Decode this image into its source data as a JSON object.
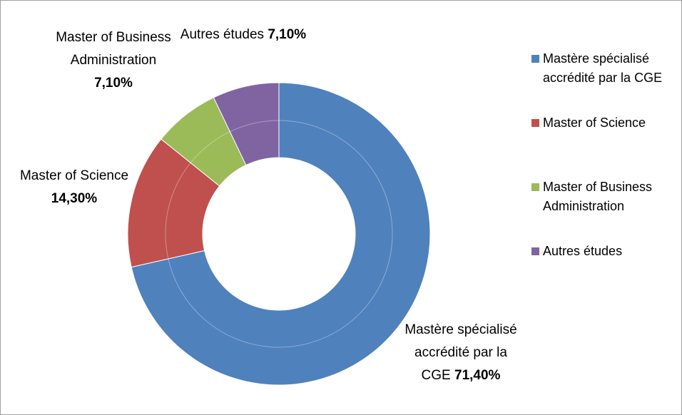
{
  "chart_data": {
    "type": "donut",
    "categories": [
      "Mastère spécialisé accrédité par la CGE",
      "Master of Science",
      "Master of Business Administration",
      "Autres études"
    ],
    "values": [
      71.4,
      14.3,
      7.1,
      7.1
    ],
    "value_labels": [
      "71,40%",
      "14,30%",
      "7,10%",
      "7,10%"
    ],
    "colors": [
      "#4f81bd",
      "#c0504d",
      "#9bbb59",
      "#8064a2"
    ],
    "legend": "right"
  }
}
